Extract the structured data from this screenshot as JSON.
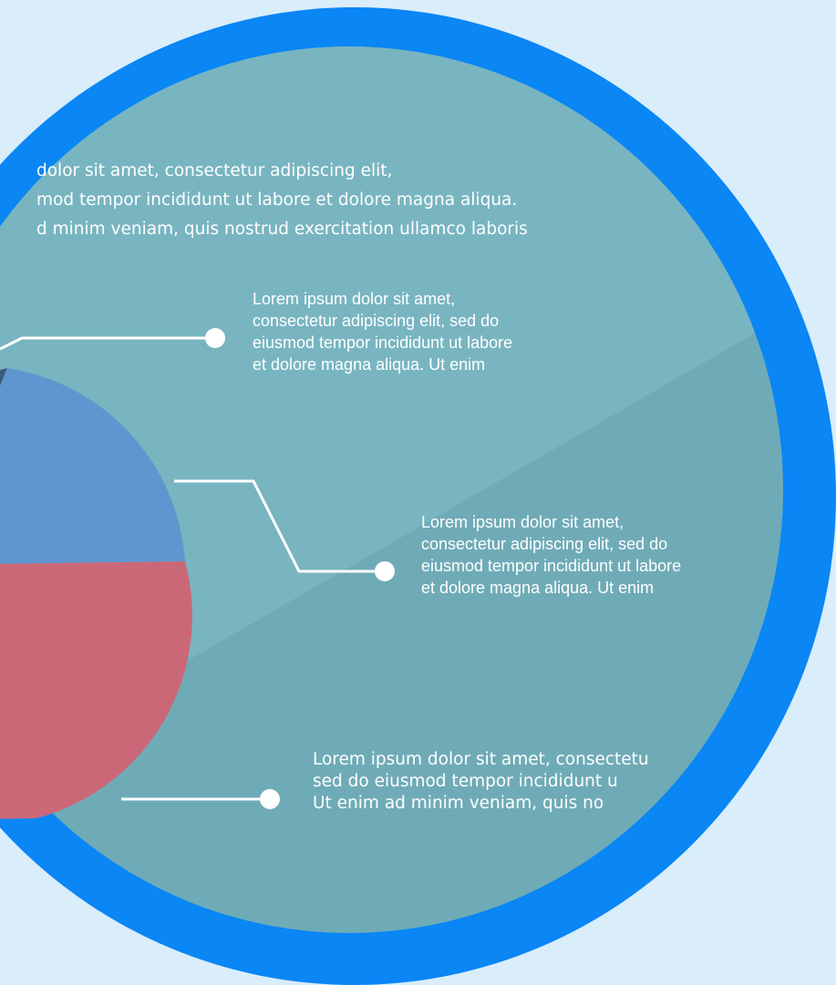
{
  "colors": {
    "background": "#d9edfb",
    "ring": "#0a86f5",
    "disc": "#6fabb7",
    "slice_blue": "#5e97cf",
    "slice_red": "#cb6878",
    "slice_dark": "#3d5a78",
    "line": "#ffffff"
  },
  "top_paragraph": {
    "line1": "dolor sit amet, consectetur adipiscing elit,",
    "line2": "mod tempor incididunt ut labore et dolore magna aliqua.",
    "line3": "d minim veniam, quis nostrud exercitation ullamco laboris"
  },
  "callout1": {
    "line1": "Lorem ipsum dolor sit amet,",
    "line2": "consectetur adipiscing elit, sed do",
    "line3": "eiusmod tempor incididunt ut labore",
    "line4": "et dolore magna aliqua. Ut enim"
  },
  "callout2": {
    "line1": "Lorem ipsum dolor sit amet,",
    "line2": "consectetur adipiscing elit, sed do",
    "line3": "eiusmod tempor incididunt ut labore",
    "line4": "et dolore magna aliqua. Ut enim"
  },
  "callout3": {
    "line1": "Lorem ipsum dolor sit amet, consectetu",
    "line2": "sed do eiusmod tempor incididunt u",
    "line3": "Ut enim ad minim veniam, quis no"
  }
}
